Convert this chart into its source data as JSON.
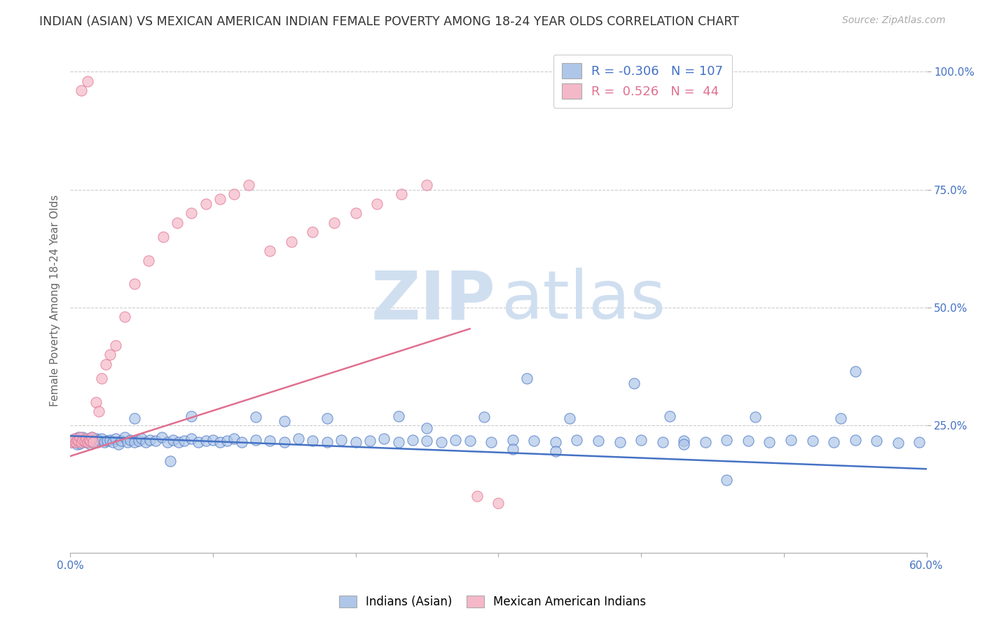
{
  "title": "INDIAN (ASIAN) VS MEXICAN AMERICAN INDIAN FEMALE POVERTY AMONG 18-24 YEAR OLDS CORRELATION CHART",
  "source": "Source: ZipAtlas.com",
  "ylabel": "Female Poverty Among 18-24 Year Olds",
  "xlim": [
    0.0,
    0.6
  ],
  "ylim": [
    -0.02,
    1.05
  ],
  "blue_R": -0.306,
  "blue_N": 107,
  "pink_R": 0.526,
  "pink_N": 44,
  "blue_color": "#aec6e8",
  "blue_line_color": "#4472c4",
  "pink_color": "#f4b8c8",
  "pink_line_color": "#e07090",
  "watermark_color": "#d0dff0",
  "legend_label_blue": "Indians (Asian)",
  "legend_label_pink": "Mexican American Indians",
  "title_fontsize": 12.5,
  "axis_label_fontsize": 11,
  "tick_fontsize": 11,
  "blue_scatter_x": [
    0.001,
    0.002,
    0.003,
    0.004,
    0.005,
    0.006,
    0.007,
    0.008,
    0.009,
    0.01,
    0.011,
    0.012,
    0.013,
    0.014,
    0.015,
    0.016,
    0.017,
    0.018,
    0.019,
    0.02,
    0.022,
    0.024,
    0.026,
    0.028,
    0.03,
    0.032,
    0.034,
    0.036,
    0.038,
    0.04,
    0.042,
    0.045,
    0.048,
    0.05,
    0.053,
    0.056,
    0.06,
    0.064,
    0.068,
    0.072,
    0.076,
    0.08,
    0.085,
    0.09,
    0.095,
    0.1,
    0.105,
    0.11,
    0.115,
    0.12,
    0.13,
    0.14,
    0.15,
    0.16,
    0.17,
    0.18,
    0.19,
    0.2,
    0.21,
    0.22,
    0.23,
    0.24,
    0.25,
    0.26,
    0.27,
    0.28,
    0.295,
    0.31,
    0.325,
    0.34,
    0.355,
    0.37,
    0.385,
    0.4,
    0.415,
    0.43,
    0.445,
    0.46,
    0.475,
    0.49,
    0.505,
    0.52,
    0.535,
    0.55,
    0.565,
    0.58,
    0.595,
    0.045,
    0.085,
    0.13,
    0.18,
    0.23,
    0.29,
    0.35,
    0.42,
    0.48,
    0.54,
    0.32,
    0.395,
    0.46,
    0.55,
    0.31,
    0.07,
    0.15,
    0.25,
    0.34,
    0.43
  ],
  "blue_scatter_y": [
    0.215,
    0.22,
    0.218,
    0.222,
    0.21,
    0.225,
    0.212,
    0.218,
    0.225,
    0.22,
    0.215,
    0.218,
    0.222,
    0.21,
    0.225,
    0.215,
    0.218,
    0.222,
    0.215,
    0.22,
    0.222,
    0.215,
    0.218,
    0.22,
    0.215,
    0.222,
    0.21,
    0.218,
    0.225,
    0.215,
    0.22,
    0.215,
    0.218,
    0.222,
    0.215,
    0.22,
    0.218,
    0.225,
    0.215,
    0.22,
    0.215,
    0.218,
    0.222,
    0.215,
    0.218,
    0.22,
    0.215,
    0.218,
    0.222,
    0.215,
    0.22,
    0.218,
    0.215,
    0.222,
    0.218,
    0.215,
    0.22,
    0.215,
    0.218,
    0.222,
    0.215,
    0.22,
    0.218,
    0.215,
    0.22,
    0.218,
    0.215,
    0.22,
    0.218,
    0.215,
    0.22,
    0.218,
    0.215,
    0.22,
    0.215,
    0.218,
    0.215,
    0.22,
    0.218,
    0.215,
    0.22,
    0.218,
    0.215,
    0.22,
    0.218,
    0.213,
    0.215,
    0.265,
    0.27,
    0.268,
    0.265,
    0.27,
    0.268,
    0.265,
    0.27,
    0.268,
    0.265,
    0.35,
    0.34,
    0.135,
    0.365,
    0.2,
    0.175,
    0.26,
    0.245,
    0.195,
    0.21
  ],
  "pink_scatter_x": [
    0.001,
    0.002,
    0.003,
    0.004,
    0.005,
    0.006,
    0.007,
    0.008,
    0.009,
    0.01,
    0.011,
    0.012,
    0.013,
    0.014,
    0.015,
    0.016,
    0.018,
    0.02,
    0.022,
    0.025,
    0.028,
    0.032,
    0.038,
    0.045,
    0.055,
    0.065,
    0.075,
    0.085,
    0.095,
    0.105,
    0.115,
    0.125,
    0.14,
    0.155,
    0.17,
    0.185,
    0.2,
    0.215,
    0.232,
    0.25,
    0.008,
    0.012,
    0.285,
    0.3
  ],
  "pink_scatter_y": [
    0.215,
    0.218,
    0.222,
    0.215,
    0.22,
    0.218,
    0.225,
    0.215,
    0.22,
    0.218,
    0.222,
    0.215,
    0.22,
    0.218,
    0.225,
    0.215,
    0.3,
    0.28,
    0.35,
    0.38,
    0.4,
    0.42,
    0.48,
    0.55,
    0.6,
    0.65,
    0.68,
    0.7,
    0.72,
    0.73,
    0.74,
    0.76,
    0.62,
    0.64,
    0.66,
    0.68,
    0.7,
    0.72,
    0.74,
    0.76,
    0.96,
    0.98,
    0.1,
    0.085
  ],
  "blue_trend_x": [
    0.0,
    0.6
  ],
  "blue_trend_y": [
    0.228,
    0.158
  ],
  "pink_trend_x": [
    0.0,
    0.28
  ],
  "pink_trend_y": [
    0.185,
    0.455
  ]
}
